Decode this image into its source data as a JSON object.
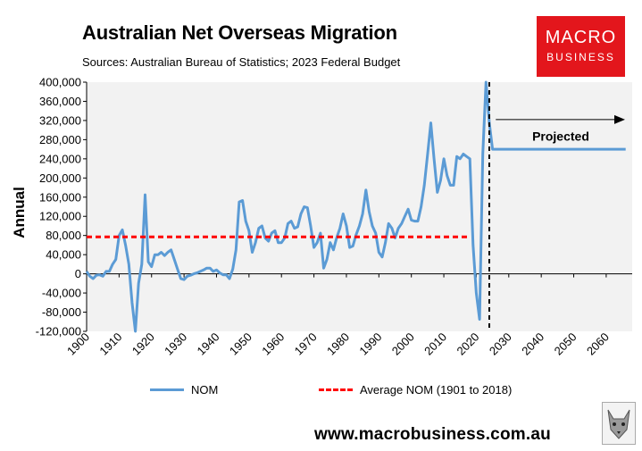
{
  "header": {
    "title": "Australian Net Overseas Migration",
    "subtitle": "Sources: Australian Bureau of Statistics; 2023 Federal Budget"
  },
  "logo": {
    "line1": "MACRO",
    "line2": "BUSINESS",
    "color": "#e3161c"
  },
  "footer": {
    "url": "www.macrobusiness.com.au"
  },
  "chart_data": {
    "type": "line",
    "title": "Australian Net Overseas Migration",
    "ylabel": "Annual",
    "xlabel": "",
    "xlim": [
      1900,
      2068
    ],
    "ylim": [
      -120000,
      400000
    ],
    "xticks": [
      1900,
      1910,
      1920,
      1930,
      1940,
      1950,
      1960,
      1970,
      1980,
      1990,
      2000,
      2010,
      2020,
      2030,
      2040,
      2050,
      2060
    ],
    "yticks": [
      -120000,
      -80000,
      -40000,
      0,
      40000,
      80000,
      120000,
      160000,
      200000,
      240000,
      280000,
      320000,
      360000,
      400000
    ],
    "ytick_labels": [
      "-120,000",
      "-80,000",
      "-40,000",
      "0",
      "40,000",
      "80,000",
      "120,000",
      "160,000",
      "200,000",
      "240,000",
      "280,000",
      "320,000",
      "360,000",
      "400,000"
    ],
    "grid": false,
    "legend_position": "bottom",
    "background": "#f2f2f2",
    "series": [
      {
        "name": "NOM",
        "color": "#5b9bd5",
        "points": [
          [
            1900,
            5000
          ],
          [
            1901,
            -5000
          ],
          [
            1902,
            -10000
          ],
          [
            1903,
            -3000
          ],
          [
            1904,
            -2000
          ],
          [
            1905,
            -5000
          ],
          [
            1906,
            5000
          ],
          [
            1907,
            5000
          ],
          [
            1908,
            20000
          ],
          [
            1909,
            30000
          ],
          [
            1910,
            80000
          ],
          [
            1911,
            92000
          ],
          [
            1912,
            60000
          ],
          [
            1913,
            20000
          ],
          [
            1914,
            -60000
          ],
          [
            1915,
            -120000
          ],
          [
            1916,
            -20000
          ],
          [
            1917,
            20000
          ],
          [
            1918,
            165000
          ],
          [
            1919,
            25000
          ],
          [
            1920,
            15000
          ],
          [
            1921,
            40000
          ],
          [
            1922,
            40000
          ],
          [
            1923,
            45000
          ],
          [
            1924,
            38000
          ],
          [
            1925,
            45000
          ],
          [
            1926,
            50000
          ],
          [
            1927,
            30000
          ],
          [
            1928,
            10000
          ],
          [
            1929,
            -10000
          ],
          [
            1930,
            -12000
          ],
          [
            1931,
            -5000
          ],
          [
            1932,
            -3000
          ],
          [
            1933,
            0
          ],
          [
            1934,
            2000
          ],
          [
            1935,
            5000
          ],
          [
            1936,
            8000
          ],
          [
            1937,
            12000
          ],
          [
            1938,
            12000
          ],
          [
            1939,
            5000
          ],
          [
            1940,
            8000
          ],
          [
            1941,
            2000
          ],
          [
            1942,
            -2000
          ],
          [
            1943,
            -2000
          ],
          [
            1944,
            -10000
          ],
          [
            1945,
            10000
          ],
          [
            1946,
            50000
          ],
          [
            1947,
            150000
          ],
          [
            1948,
            153000
          ],
          [
            1949,
            110000
          ],
          [
            1950,
            90000
          ],
          [
            1951,
            45000
          ],
          [
            1952,
            65000
          ],
          [
            1953,
            95000
          ],
          [
            1954,
            100000
          ],
          [
            1955,
            75000
          ],
          [
            1956,
            68000
          ],
          [
            1957,
            85000
          ],
          [
            1958,
            90000
          ],
          [
            1959,
            65000
          ],
          [
            1960,
            65000
          ],
          [
            1961,
            75000
          ],
          [
            1962,
            105000
          ],
          [
            1963,
            110000
          ],
          [
            1964,
            95000
          ],
          [
            1965,
            98000
          ],
          [
            1966,
            125000
          ],
          [
            1967,
            140000
          ],
          [
            1968,
            138000
          ],
          [
            1969,
            100000
          ],
          [
            1970,
            55000
          ],
          [
            1971,
            65000
          ],
          [
            1972,
            85000
          ],
          [
            1973,
            12000
          ],
          [
            1974,
            30000
          ],
          [
            1975,
            65000
          ],
          [
            1976,
            50000
          ],
          [
            1977,
            75000
          ],
          [
            1978,
            95000
          ],
          [
            1979,
            125000
          ],
          [
            1980,
            100000
          ],
          [
            1981,
            55000
          ],
          [
            1982,
            58000
          ],
          [
            1983,
            82000
          ],
          [
            1984,
            100000
          ],
          [
            1985,
            125000
          ],
          [
            1986,
            175000
          ],
          [
            1987,
            130000
          ],
          [
            1988,
            100000
          ],
          [
            1989,
            85000
          ],
          [
            1990,
            45000
          ],
          [
            1991,
            35000
          ],
          [
            1992,
            65000
          ],
          [
            1993,
            105000
          ],
          [
            1994,
            95000
          ],
          [
            1995,
            75000
          ],
          [
            1996,
            95000
          ],
          [
            1997,
            105000
          ],
          [
            1998,
            120000
          ],
          [
            1999,
            135000
          ],
          [
            2000,
            112000
          ],
          [
            2001,
            110000
          ],
          [
            2002,
            110000
          ],
          [
            2003,
            140000
          ],
          [
            2004,
            185000
          ],
          [
            2005,
            250000
          ],
          [
            2006,
            315000
          ],
          [
            2007,
            240000
          ],
          [
            2008,
            170000
          ],
          [
            2009,
            195000
          ],
          [
            2010,
            240000
          ],
          [
            2011,
            205000
          ],
          [
            2012,
            185000
          ],
          [
            2013,
            185000
          ],
          [
            2014,
            245000
          ],
          [
            2015,
            240000
          ],
          [
            2016,
            250000
          ],
          [
            2017,
            245000
          ],
          [
            2018,
            240000
          ],
          [
            2019,
            60000
          ],
          [
            2020,
            -40000
          ],
          [
            2021,
            -95000
          ],
          [
            2022,
            250000
          ],
          [
            2023,
            400000
          ],
          [
            2024,
            315000
          ],
          [
            2025,
            260000
          ],
          [
            2026,
            260000
          ],
          [
            2066,
            260000
          ]
        ]
      },
      {
        "name": "Average NOM (1901 to 2018)",
        "color": "#ff0000",
        "dashed": true,
        "points": [
          [
            1900,
            77000
          ],
          [
            2018,
            77000
          ]
        ]
      }
    ],
    "vline": {
      "x": 2024,
      "color": "#000000",
      "dashed": true
    },
    "annotations": [
      {
        "text": "Projected"
      }
    ]
  }
}
